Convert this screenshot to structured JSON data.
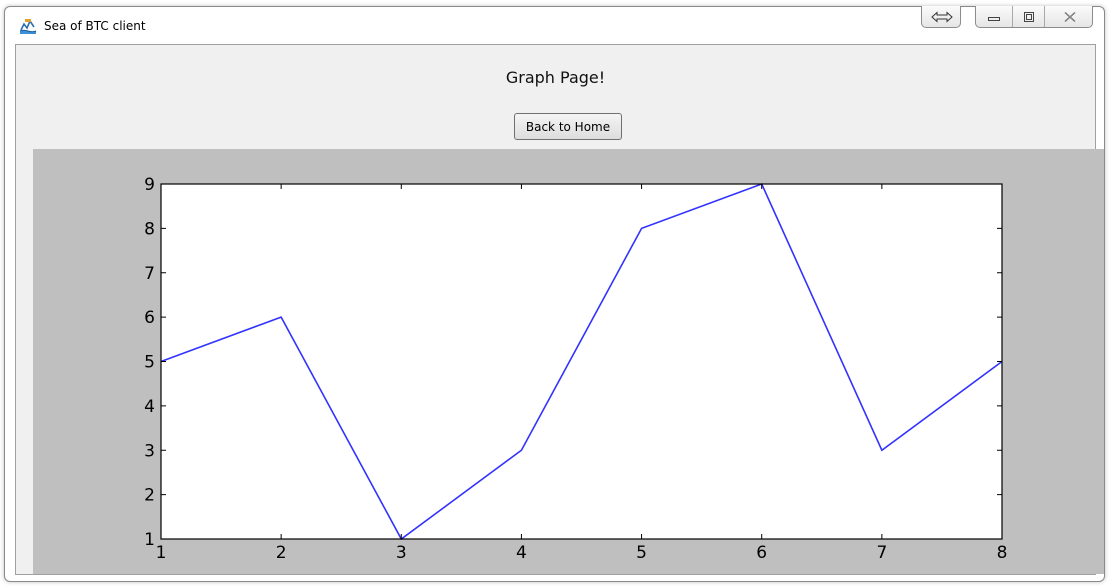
{
  "window": {
    "title": "Sea of BTC client",
    "icon": "sea-of-btc-app-icon",
    "controls": [
      "resize-arrows-icon",
      "minimize-icon",
      "maximize-icon",
      "close-icon"
    ]
  },
  "page": {
    "heading": "Graph Page!",
    "back_button_label": "Back to Home"
  },
  "chart_data": {
    "type": "line",
    "title": "",
    "xlabel": "",
    "ylabel": "",
    "x": [
      1,
      2,
      3,
      4,
      5,
      6,
      7,
      8
    ],
    "series": [
      {
        "values": [
          5,
          6,
          1,
          3,
          8,
          9,
          3,
          5
        ],
        "color": "#3333ff"
      }
    ],
    "xlim": [
      1,
      8
    ],
    "ylim": [
      1,
      9
    ],
    "xticks": [
      "1",
      "2",
      "3",
      "4",
      "5",
      "6",
      "7",
      "8"
    ],
    "yticks": [
      "1",
      "2",
      "3",
      "4",
      "5",
      "6",
      "7",
      "8",
      "9"
    ],
    "grid": false,
    "legend": "none",
    "figure_background": "#bfbfbf",
    "axes_background": "#ffffff"
  }
}
